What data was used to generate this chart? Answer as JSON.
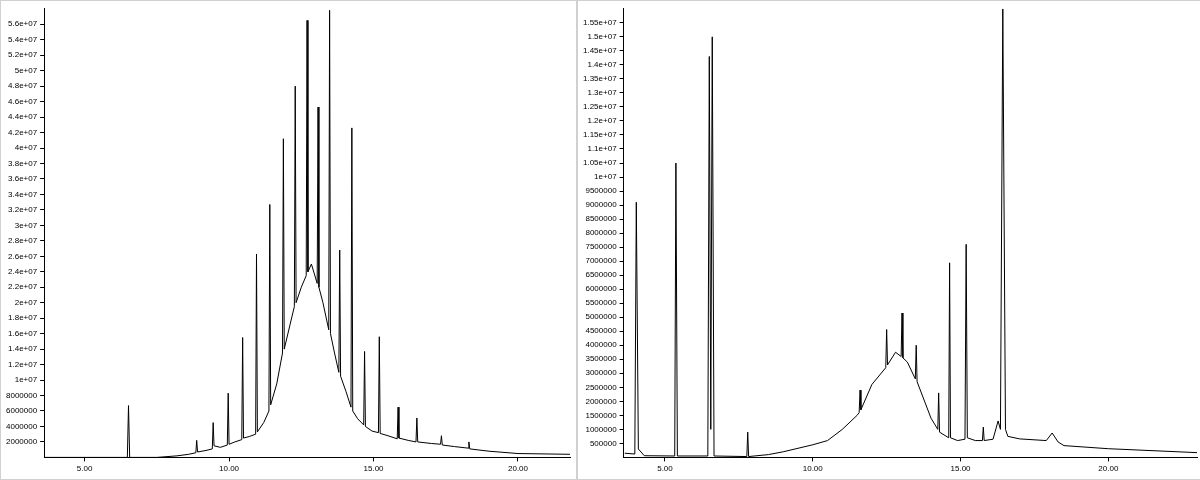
{
  "chart_data": [
    {
      "type": "line",
      "xlim": [
        3.6,
        21.8
      ],
      "ylim": [
        0,
        58000000
      ],
      "xticks": [
        {
          "value": 5,
          "label": "5.00"
        },
        {
          "value": 10,
          "label": "10.00"
        },
        {
          "value": 15,
          "label": "15.00"
        },
        {
          "value": 20,
          "label": "20.00"
        }
      ],
      "yticks": [
        {
          "value": 2000000,
          "label": "2000000"
        },
        {
          "value": 4000000,
          "label": "4000000"
        },
        {
          "value": 6000000,
          "label": "6000000"
        },
        {
          "value": 8000000,
          "label": "8000000"
        },
        {
          "value": 10000000,
          "label": "1e+07"
        },
        {
          "value": 12000000,
          "label": "1.2e+07"
        },
        {
          "value": 14000000,
          "label": "1.4e+07"
        },
        {
          "value": 16000000,
          "label": "1.6e+07"
        },
        {
          "value": 18000000,
          "label": "1.8e+07"
        },
        {
          "value": 20000000,
          "label": "2e+07"
        },
        {
          "value": 22000000,
          "label": "2.2e+07"
        },
        {
          "value": 24000000,
          "label": "2.4e+07"
        },
        {
          "value": 26000000,
          "label": "2.6e+07"
        },
        {
          "value": 28000000,
          "label": "2.8e+07"
        },
        {
          "value": 30000000,
          "label": "3e+07"
        },
        {
          "value": 32000000,
          "label": "3.2e+07"
        },
        {
          "value": 34000000,
          "label": "3.4e+07"
        },
        {
          "value": 36000000,
          "label": "3.6e+07"
        },
        {
          "value": 38000000,
          "label": "3.8e+07"
        },
        {
          "value": 40000000,
          "label": "4e+07"
        },
        {
          "value": 42000000,
          "label": "4.2e+07"
        },
        {
          "value": 44000000,
          "label": "4.4e+07"
        },
        {
          "value": 46000000,
          "label": "4.6e+07"
        },
        {
          "value": 48000000,
          "label": "4.8e+07"
        },
        {
          "value": 50000000,
          "label": "5e+07"
        },
        {
          "value": 52000000,
          "label": "5.2e+07"
        },
        {
          "value": 54000000,
          "label": "5.4e+07"
        },
        {
          "value": 56000000,
          "label": "5.6e+07"
        }
      ],
      "series": [
        {
          "color": "#000000",
          "x": [
            3.6,
            6.48,
            6.52,
            6.56,
            7.5,
            8.2,
            8.6,
            8.85,
            8.88,
            8.91,
            9.2,
            9.42,
            9.45,
            9.48,
            9.7,
            9.94,
            9.97,
            10.0,
            10.2,
            10.44,
            10.47,
            10.5,
            10.7,
            10.92,
            10.95,
            10.98,
            11.2,
            11.38,
            11.41,
            11.44,
            11.65,
            11.85,
            11.88,
            11.91,
            12.1,
            12.26,
            12.29,
            12.32,
            12.5,
            12.67,
            12.7,
            12.73,
            12.85,
            13.05,
            13.08,
            13.11,
            13.25,
            13.45,
            13.48,
            13.51,
            13.65,
            13.8,
            13.83,
            13.86,
            14.05,
            14.22,
            14.25,
            14.28,
            14.45,
            14.66,
            14.69,
            14.72,
            14.95,
            15.17,
            15.2,
            15.23,
            15.5,
            15.82,
            15.85,
            15.88,
            16.2,
            16.47,
            16.5,
            16.53,
            17.0,
            17.32,
            17.35,
            17.38,
            17.8,
            18.27,
            18.3,
            18.33,
            19.0,
            20.0,
            21.8
          ],
          "values": [
            0,
            0,
            6700000,
            0,
            0,
            200000,
            400000,
            600000,
            2200000,
            700000,
            900000,
            1100000,
            4500000,
            1500000,
            1300000,
            1600000,
            8300000,
            1700000,
            2000000,
            2300000,
            15500000,
            2500000,
            2700000,
            3000000,
            26300000,
            3300000,
            4500000,
            6000000,
            32700000,
            6800000,
            9500000,
            13500000,
            41200000,
            14000000,
            17000000,
            19500000,
            48000000,
            20000000,
            22000000,
            23500000,
            56500000,
            24000000,
            25000000,
            22500000,
            45300000,
            22000000,
            20000000,
            16500000,
            57800000,
            16000000,
            13500000,
            11000000,
            26800000,
            10500000,
            8500000,
            6500000,
            42600000,
            6000000,
            5000000,
            4200000,
            13700000,
            4000000,
            3400000,
            3200000,
            15600000,
            3100000,
            2800000,
            2400000,
            6500000,
            2500000,
            2200000,
            2000000,
            5100000,
            2000000,
            1800000,
            1700000,
            2800000,
            1600000,
            1400000,
            1200000,
            2000000,
            1100000,
            800000,
            500000,
            400000
          ]
        }
      ]
    },
    {
      "type": "line",
      "xlim": [
        3.6,
        23
      ],
      "ylim": [
        0,
        16000000
      ],
      "xticks": [
        {
          "value": 5,
          "label": "5.00"
        },
        {
          "value": 10,
          "label": "10.00"
        },
        {
          "value": 15,
          "label": "15.00"
        },
        {
          "value": 20,
          "label": "20.00"
        }
      ],
      "yticks": [
        {
          "value": 500000,
          "label": "500000"
        },
        {
          "value": 1000000,
          "label": "1000000"
        },
        {
          "value": 1500000,
          "label": "1500000"
        },
        {
          "value": 2000000,
          "label": "2000000"
        },
        {
          "value": 2500000,
          "label": "2500000"
        },
        {
          "value": 3000000,
          "label": "3000000"
        },
        {
          "value": 3500000,
          "label": "3500000"
        },
        {
          "value": 4000000,
          "label": "4000000"
        },
        {
          "value": 4500000,
          "label": "4500000"
        },
        {
          "value": 5000000,
          "label": "5000000"
        },
        {
          "value": 5500000,
          "label": "5500000"
        },
        {
          "value": 6000000,
          "label": "6000000"
        },
        {
          "value": 6500000,
          "label": "6500000"
        },
        {
          "value": 7000000,
          "label": "7000000"
        },
        {
          "value": 7500000,
          "label": "7500000"
        },
        {
          "value": 8000000,
          "label": "8000000"
        },
        {
          "value": 8500000,
          "label": "8500000"
        },
        {
          "value": 9000000,
          "label": "9000000"
        },
        {
          "value": 9500000,
          "label": "9500000"
        },
        {
          "value": 10000000,
          "label": "1e+07"
        },
        {
          "value": 10500000,
          "label": "1.05e+07"
        },
        {
          "value": 11000000,
          "label": "1.1e+07"
        },
        {
          "value": 11500000,
          "label": "1.15e+07"
        },
        {
          "value": 12000000,
          "label": "1.2e+07"
        },
        {
          "value": 12500000,
          "label": "1.25e+07"
        },
        {
          "value": 13000000,
          "label": "1.3e+07"
        },
        {
          "value": 13500000,
          "label": "1.35e+07"
        },
        {
          "value": 14000000,
          "label": "1.4e+07"
        },
        {
          "value": 14500000,
          "label": "1.45e+07"
        },
        {
          "value": 15000000,
          "label": "1.5e+07"
        },
        {
          "value": 15500000,
          "label": "1.55e+07"
        }
      ],
      "series": [
        {
          "color": "#000000",
          "x": [
            3.64,
            3.98,
            4.03,
            4.1,
            4.3,
            5.33,
            5.37,
            5.42,
            6.45,
            6.5,
            6.55,
            6.6,
            6.66,
            7.77,
            7.8,
            7.83,
            8.5,
            9,
            10,
            10.5,
            11,
            11.5,
            11.57,
            11.6,
            11.63,
            12,
            12.47,
            12.5,
            12.53,
            12.8,
            12.99,
            13.02,
            13.05,
            13.2,
            13.47,
            13.5,
            13.53,
            14,
            14.23,
            14.26,
            14.29,
            14.6,
            14.63,
            14.66,
            14.9,
            15.15,
            15.19,
            15.23,
            15.5,
            15.74,
            15.77,
            15.8,
            16.1,
            16.27,
            16.35,
            16.43,
            16.52,
            16.6,
            17,
            17.9,
            18.1,
            18.3,
            18.5,
            20,
            23
          ],
          "values": [
            150000,
            120000,
            9100000,
            300000,
            60000,
            50000,
            10500000,
            50000,
            50000,
            14300000,
            1000000,
            15000000,
            50000,
            30000,
            900000,
            30000,
            100000,
            200000,
            450000,
            600000,
            1000000,
            1500000,
            1600000,
            2400000,
            1700000,
            2600000,
            3200000,
            4560000,
            3300000,
            3750000,
            3600000,
            5150000,
            3550000,
            3400000,
            2800000,
            4000000,
            2700000,
            1400000,
            1000000,
            2300000,
            900000,
            700000,
            6940000,
            700000,
            600000,
            650000,
            7600000,
            700000,
            600000,
            600000,
            1080000,
            600000,
            650000,
            1300000,
            1000000,
            16000000,
            1000000,
            750000,
            660000,
            600000,
            870000,
            550000,
            420000,
            310000,
            170000
          ]
        }
      ]
    }
  ]
}
